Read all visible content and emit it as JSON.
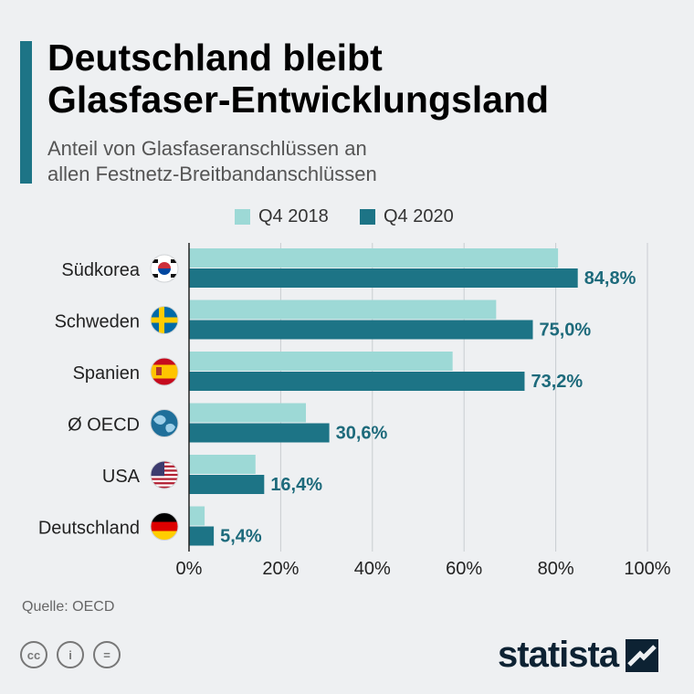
{
  "header": {
    "title_line1": "Deutschland bleibt",
    "title_line2": "Glasfaser-Entwicklungsland",
    "subtitle_line1": "Anteil von Glasfaseranschlüssen an",
    "subtitle_line2": "allen Festnetz-Breitbandanschlüssen"
  },
  "colors": {
    "accent": "#1d7486",
    "series_2018": "#9dd9d6",
    "series_2020": "#1d7486",
    "value_label": "#1d6a7b"
  },
  "chart_data": {
    "type": "bar",
    "orientation": "horizontal",
    "categories": [
      "Südkorea",
      "Schweden",
      "Spanien",
      "Ø OECD",
      "USA",
      "Deutschland"
    ],
    "flag_icons": [
      "south-korea-flag-icon",
      "sweden-flag-icon",
      "spain-flag-icon",
      "globe-icon",
      "usa-flag-icon",
      "germany-flag-icon"
    ],
    "series": [
      {
        "name": "Q4 2018",
        "values": [
          80.5,
          67.0,
          57.5,
          25.5,
          14.5,
          3.4
        ]
      },
      {
        "name": "Q4 2020",
        "values": [
          84.8,
          75.0,
          73.2,
          30.6,
          16.4,
          5.4
        ]
      }
    ],
    "value_labels": [
      "84,8%",
      "75,0%",
      "73,2%",
      "30,6%",
      "16,4%",
      "5,4%"
    ],
    "x_ticks": [
      0,
      20,
      40,
      60,
      80,
      100
    ],
    "x_tick_labels": [
      "0%",
      "20%",
      "40%",
      "60%",
      "80%",
      "100%"
    ],
    "xlim": [
      0,
      100
    ],
    "grid": true,
    "legend_position": "top"
  },
  "footer": {
    "source": "Quelle: OECD",
    "brand": "statista",
    "license_icons": [
      "cc-icon",
      "by-icon",
      "nd-icon"
    ],
    "license_glyphs": [
      "cc",
      "i",
      "="
    ]
  }
}
